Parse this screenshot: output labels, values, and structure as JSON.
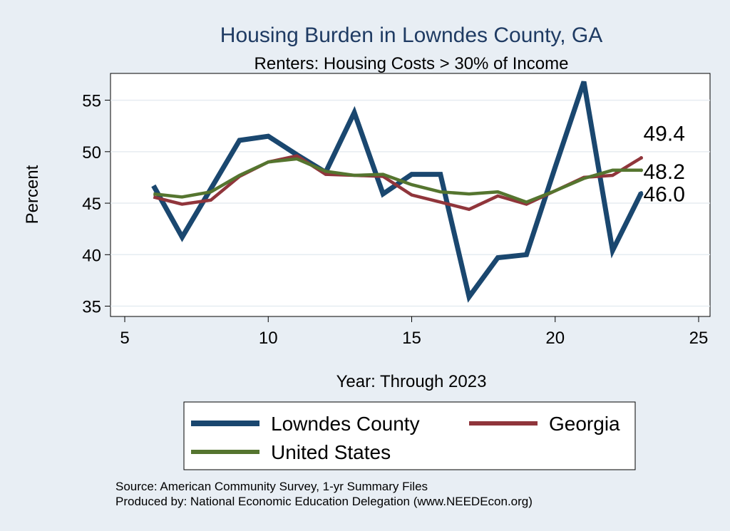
{
  "chart_data": {
    "type": "line",
    "title": "Housing Burden in Lowndes County, GA",
    "subtitle": "Renters: Housing Costs > 30% of Income",
    "xlabel": "Year: Through 2023",
    "ylabel": "Percent",
    "xlim": [
      5,
      25
    ],
    "ylim": [
      34,
      57.6
    ],
    "x_ticks": [
      5,
      10,
      15,
      20,
      25
    ],
    "y_ticks": [
      35,
      40,
      45,
      50,
      55
    ],
    "grid": true,
    "legend_position": "bottom",
    "x": [
      6,
      7,
      8,
      9,
      10,
      11,
      12,
      13,
      14,
      15,
      16,
      17,
      18,
      19,
      20,
      21,
      22,
      23
    ],
    "series": [
      {
        "name": "Lowndes County",
        "color": "#1a476f",
        "values": [
          46.7,
          41.7,
          46.4,
          51.1,
          51.5,
          49.7,
          48.0,
          53.8,
          45.9,
          47.8,
          47.8,
          35.9,
          39.7,
          40.0,
          48.5,
          56.8,
          40.4,
          46.0
        ],
        "end_label": "46.0"
      },
      {
        "name": "Georgia",
        "color": "#90353b",
        "values": [
          45.6,
          44.9,
          45.3,
          47.6,
          49.0,
          49.6,
          47.8,
          47.7,
          47.6,
          45.8,
          45.1,
          44.4,
          45.7,
          44.9,
          46.2,
          47.5,
          47.7,
          49.4
        ],
        "end_label": "49.4"
      },
      {
        "name": "United States",
        "color": "#55752f",
        "values": [
          45.9,
          45.6,
          46.1,
          47.7,
          49.0,
          49.3,
          48.1,
          47.7,
          47.8,
          46.8,
          46.1,
          45.9,
          46.1,
          45.1,
          46.2,
          47.4,
          48.2,
          48.2
        ],
        "end_label": "48.2"
      }
    ]
  },
  "notes": {
    "source": "Source: American Community Survey, 1-yr Summary Files",
    "produced_by": "Produced by: National Economic Education Delegation (www.NEEDEcon.org)"
  }
}
